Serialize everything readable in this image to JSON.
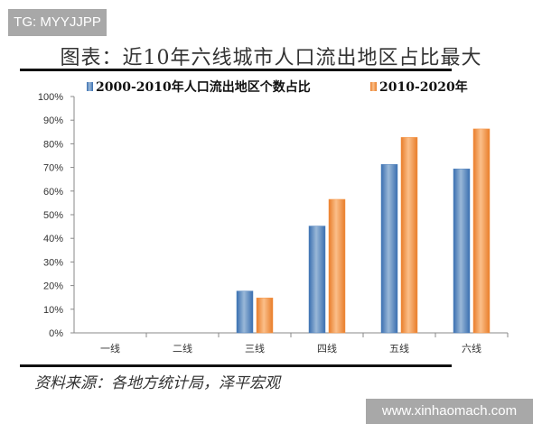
{
  "watermark_top": "TG: MYYJJPP",
  "watermark_bottom": "www.xinhaomach.com",
  "source": "资料来源：各地方统计局，泽平宏观",
  "chart_data": {
    "type": "bar",
    "title": "图表：近10年六线城市人口流出地区占比最大",
    "categories": [
      "一线",
      "二线",
      "三线",
      "四线",
      "五线",
      "六线"
    ],
    "series": [
      {
        "name": "2000-2010年人口流出地区个数占比",
        "values": [
          0,
          0,
          17.7,
          45.2,
          71.3,
          69.4
        ],
        "color": "#4f81bd"
      },
      {
        "name": "2010-2020年",
        "values": [
          0,
          0,
          14.8,
          56.5,
          82.7,
          86.3
        ],
        "color": "#f79646"
      }
    ],
    "ylim": [
      0,
      100
    ],
    "yticks": [
      "0%",
      "10%",
      "20%",
      "30%",
      "40%",
      "50%",
      "60%",
      "70%",
      "80%",
      "90%",
      "100%"
    ],
    "grid": false,
    "legend": "top"
  }
}
